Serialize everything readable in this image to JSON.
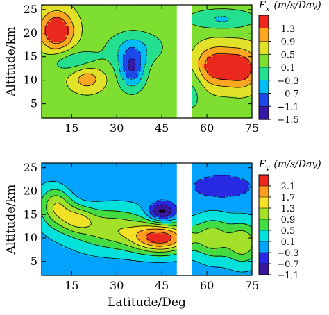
{
  "chart_data": [
    {
      "type": "heatmap",
      "panel": "top",
      "quantity_symbol": "F",
      "quantity_subscript": "x",
      "units": "(m/s/Day)",
      "ylabel": "Altitude/km",
      "xlabel": "",
      "xlim": [
        5,
        75
      ],
      "ylim": [
        2,
        26
      ],
      "x_ticks": [
        15,
        30,
        45,
        60,
        75
      ],
      "y_ticks": [
        5,
        10,
        15,
        20,
        25
      ],
      "gap_x": [
        50,
        55
      ],
      "levels": [
        -1.5,
        -1.1,
        -0.7,
        -0.3,
        0.1,
        0.5,
        0.9,
        1.3
      ],
      "colorbar_ticks": [
        "1.3",
        "0.9",
        "0.5",
        "0.1",
        "−0.3",
        "−0.7",
        "−1.1",
        "−1.5"
      ],
      "background_value": 0.35,
      "features": [
        {
          "kind": "maximum",
          "x": 10,
          "y": 20.5,
          "peak": 1.5,
          "sx": 4,
          "sy": 3
        },
        {
          "kind": "maximum",
          "x": 20,
          "y": 10.5,
          "peak": 0.8,
          "sx": 4,
          "sy": 2
        },
        {
          "kind": "maximum",
          "x": 63,
          "y": 13,
          "peak": 1.3,
          "sx": 5,
          "sy": 3
        },
        {
          "kind": "maximum",
          "x": 72,
          "y": 12.5,
          "peak": 1.1,
          "sx": 4,
          "sy": 3
        },
        {
          "kind": "minimum",
          "x": 35,
          "y": 12.5,
          "peak": -1.4,
          "sx": 3,
          "sy": 3
        },
        {
          "kind": "minimum",
          "x": 36,
          "y": 17,
          "peak": -0.6,
          "sx": 7,
          "sy": 2.5
        },
        {
          "kind": "minimum",
          "x": 16,
          "y": 14,
          "peak": -0.6,
          "sx": 6,
          "sy": 1.8
        },
        {
          "kind": "minimum",
          "x": 65,
          "y": 23,
          "peak": -0.7,
          "sx": 8,
          "sy": 1.5
        },
        {
          "kind": "minimum",
          "x": 55,
          "y": 8,
          "peak": -0.4,
          "sx": 3,
          "sy": 4
        }
      ]
    },
    {
      "type": "heatmap",
      "panel": "bottom",
      "quantity_symbol": "F",
      "quantity_subscript": "y",
      "units": "(m/s/Day)",
      "ylabel": "Altitude/km",
      "xlabel": "Latitude/Deg",
      "xlim": [
        5,
        75
      ],
      "ylim": [
        2,
        26
      ],
      "x_ticks": [
        15,
        30,
        45,
        60,
        75
      ],
      "y_ticks": [
        5,
        10,
        15,
        20,
        25
      ],
      "gap_x": [
        50,
        55
      ],
      "levels": [
        -1.1,
        -0.7,
        -0.3,
        0.1,
        0.5,
        0.9,
        1.3,
        1.7,
        2.1
      ],
      "colorbar_ticks": [
        "2.1",
        "1.7",
        "1.3",
        "0.9",
        "0.5",
        "0.1",
        "−0.3",
        "−0.7",
        "−1.1"
      ],
      "background_value": -0.05,
      "features": [
        {
          "kind": "maximum",
          "x": 45,
          "y": 10,
          "peak": 2.3,
          "sx": 7,
          "sy": 2.2
        },
        {
          "kind": "maximum",
          "x": 28,
          "y": 12,
          "peak": 1.2,
          "sx": 9,
          "sy": 3
        },
        {
          "kind": "maximum",
          "x": 10,
          "y": 17,
          "peak": 1.4,
          "sx": 4,
          "sy": 3
        },
        {
          "kind": "maximum",
          "x": 17,
          "y": 14,
          "peak": 1.0,
          "sx": 4,
          "sy": 2
        },
        {
          "kind": "maximum",
          "x": 62,
          "y": 10,
          "peak": 1.1,
          "sx": 4,
          "sy": 3
        },
        {
          "kind": "maximum",
          "x": 72,
          "y": 9,
          "peak": 1.3,
          "sx": 4,
          "sy": 3
        },
        {
          "kind": "minimum",
          "x": 45,
          "y": 15.5,
          "peak": -1.3,
          "sx": 3,
          "sy": 1.5
        },
        {
          "kind": "minimum",
          "x": 65,
          "y": 21,
          "peak": -0.5,
          "sx": 8,
          "sy": 2
        },
        {
          "kind": "minimum",
          "x": 15,
          "y": 21,
          "peak": -0.3,
          "sx": 6,
          "sy": 3
        }
      ]
    }
  ]
}
